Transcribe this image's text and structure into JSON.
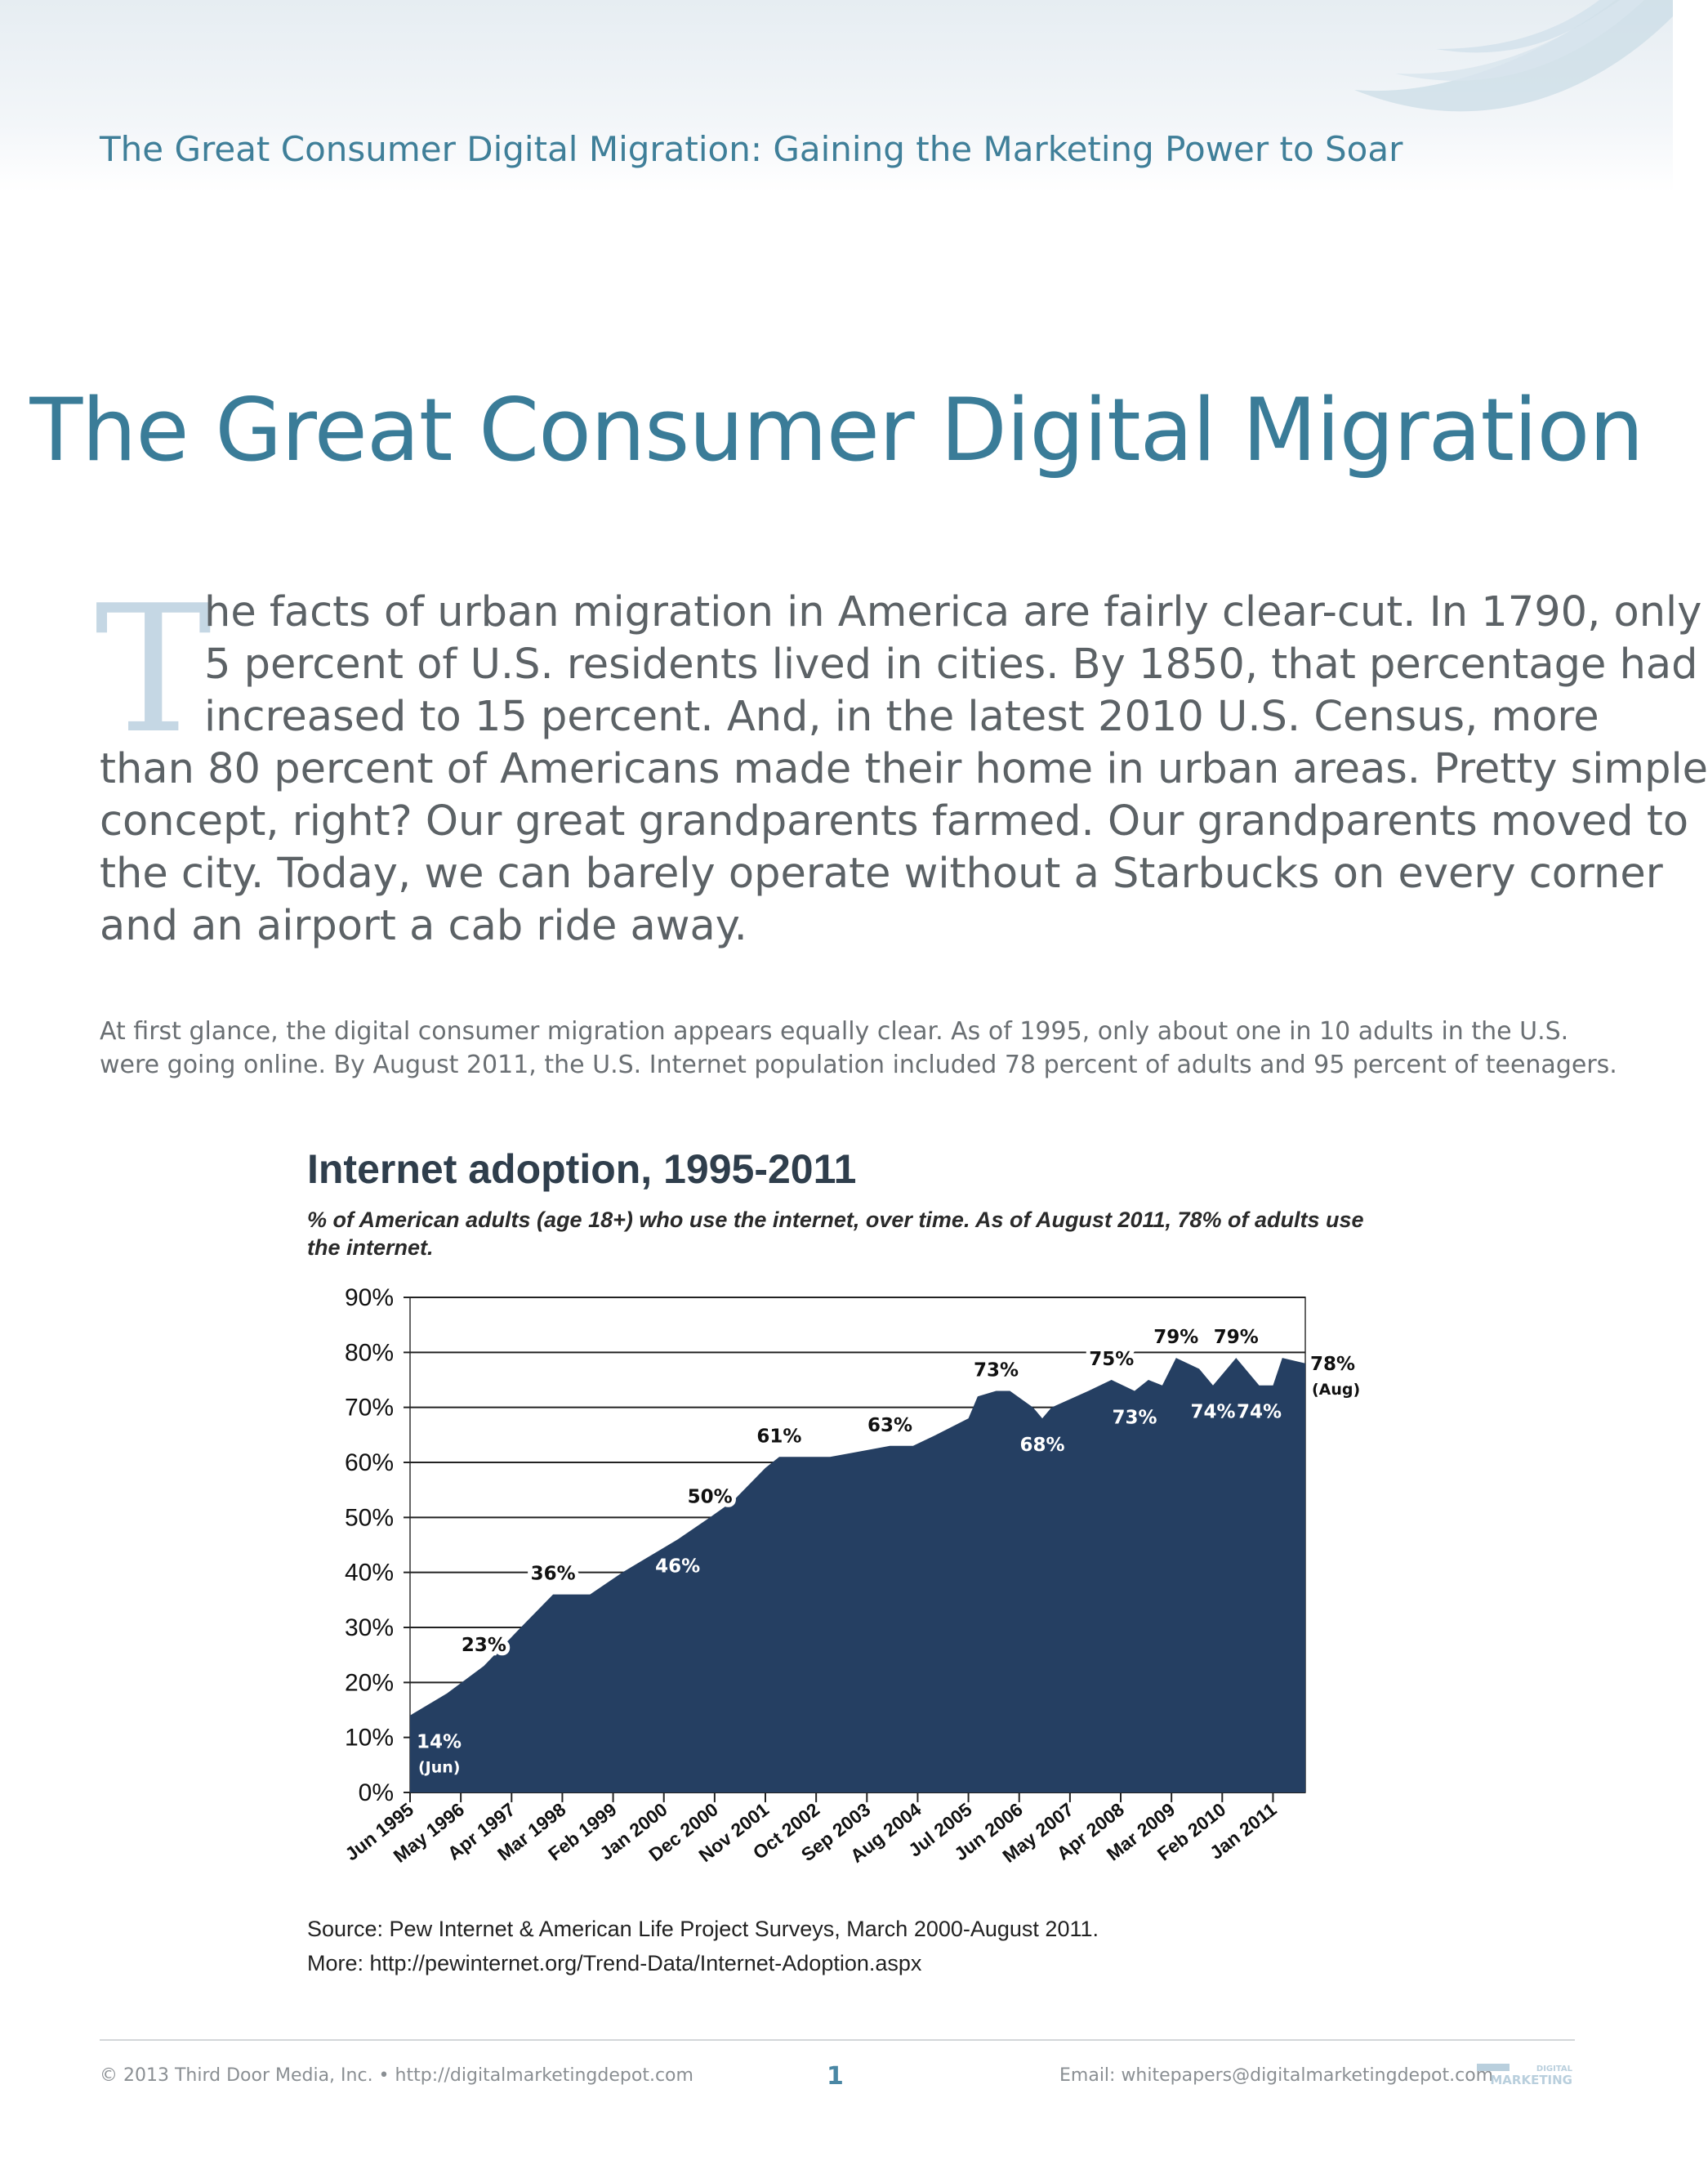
{
  "header": {
    "running_title": "The Great Consumer Digital Migration: Gaining the Marketing Power to Soar",
    "swoosh_icon": "swoosh-decoration-icon",
    "colors": {
      "band": "#e6edf2",
      "swoosh": "#c9dbe6"
    }
  },
  "title": "The Great Consumer Digital Migration",
  "intro": {
    "drop_cap": "T",
    "lines": [
      "he facts of urban migration in America are fairly clear-cut. In 1790, only",
      "5 percent of U.S. residents lived in cities. By 1850, that percentage had",
      "increased to 15 percent. And, in the latest 2010 U.S. Census, more",
      "than 80 percent of Americans made their home in urban areas. Pretty simple",
      "concept, right? Our great grandparents farmed. Our grandparents moved to",
      "the city. Today, we can barely operate without a Starbucks on every corner",
      "and an airport a cab ride away."
    ]
  },
  "body": {
    "lines": [
      "At first glance, the digital consumer migration appears equally clear. As of 1995, only about one in 10 adults in the U.S.",
      "were going online. By August 2011, the U.S. Internet population included 78 percent of adults and 95 percent of teenagers."
    ]
  },
  "chart_data": {
    "type": "area",
    "title": "Internet adoption, 1995-2011",
    "subtitle": "% of American adults (age 18+) who use the internet, over time. As of August 2011, 78% of adults use the internet.",
    "xlabel": "",
    "ylabel": "",
    "ylim": [
      0,
      90
    ],
    "y_ticks": [
      "0%",
      "10%",
      "20%",
      "30%",
      "40%",
      "50%",
      "60%",
      "70%",
      "80%",
      "90%"
    ],
    "x_ticks": [
      "Jun 1995",
      "May 1996",
      "Apr 1997",
      "Mar 1998",
      "Feb 1999",
      "Jan 2000",
      "Dec 2000",
      "Nov 2001",
      "Oct 2002",
      "Sep 2003",
      "Aug 2004",
      "Jul 2005",
      "Jun 2006",
      "May 2007",
      "Apr 2008",
      "Mar 2009",
      "Feb 2010",
      "Jan 2011"
    ],
    "grid": "horizontal",
    "fill_color": "#253f62",
    "points": [
      {
        "x": "Jun 1995",
        "y": 14
      },
      {
        "x": "Feb 1996",
        "y": 18
      },
      {
        "x": "Oct 1996",
        "y": 23
      },
      {
        "x": "Jun 1997",
        "y": 30
      },
      {
        "x": "Jan 1998",
        "y": 36
      },
      {
        "x": "Sep 1998",
        "y": 36
      },
      {
        "x": "Apr 1999",
        "y": 40
      },
      {
        "x": "Dec 1999",
        "y": 44
      },
      {
        "x": "Apr 2000",
        "y": 46
      },
      {
        "x": "Nov 2000",
        "y": 50
      },
      {
        "x": "Apr 2001",
        "y": 53
      },
      {
        "x": "Nov 2001",
        "y": 59
      },
      {
        "x": "Feb 2002",
        "y": 61
      },
      {
        "x": "Jan 2003",
        "y": 61
      },
      {
        "x": "Feb 2004",
        "y": 63
      },
      {
        "x": "Jul 2004",
        "y": 63
      },
      {
        "x": "Dec 2004",
        "y": 65
      },
      {
        "x": "Jul 2005",
        "y": 68
      },
      {
        "x": "Sep 2005",
        "y": 72
      },
      {
        "x": "Jan 2006",
        "y": 73
      },
      {
        "x": "Apr 2006",
        "y": 73
      },
      {
        "x": "Sep 2006",
        "y": 70
      },
      {
        "x": "Nov 2006",
        "y": 68
      },
      {
        "x": "Jan 2007",
        "y": 70
      },
      {
        "x": "Sep 2007",
        "y": 73
      },
      {
        "x": "Feb 2008",
        "y": 75
      },
      {
        "x": "Jul 2008",
        "y": 73
      },
      {
        "x": "Oct 2008",
        "y": 75
      },
      {
        "x": "Jan 2009",
        "y": 74
      },
      {
        "x": "Apr 2009",
        "y": 79
      },
      {
        "x": "Sep 2009",
        "y": 77
      },
      {
        "x": "Dec 2009",
        "y": 74
      },
      {
        "x": "May 2010",
        "y": 79
      },
      {
        "x": "Oct 2010",
        "y": 74
      },
      {
        "x": "Jan 2011",
        "y": 74
      },
      {
        "x": "Mar 2011",
        "y": 79
      },
      {
        "x": "Aug 2011",
        "y": 78
      }
    ],
    "data_labels": [
      {
        "x": "Jun 1995",
        "y": 14,
        "text": "14%",
        "sub": "(Jun)",
        "inside": true
      },
      {
        "x": "Oct 1996",
        "y": 23,
        "text": "23%",
        "inside": false
      },
      {
        "x": "Jan 1998",
        "y": 36,
        "text": "36%",
        "inside": false
      },
      {
        "x": "Apr 2000",
        "y": 46,
        "text": "46%",
        "inside": true
      },
      {
        "x": "Nov 2000",
        "y": 50,
        "text": "50%",
        "inside": false
      },
      {
        "x": "Feb 2002",
        "y": 61,
        "text": "61%",
        "inside": false
      },
      {
        "x": "Feb 2004",
        "y": 63,
        "text": "63%",
        "inside": false
      },
      {
        "x": "Jan 2006",
        "y": 73,
        "text": "73%",
        "inside": false
      },
      {
        "x": "Nov 2006",
        "y": 68,
        "text": "68%",
        "inside": true
      },
      {
        "x": "Feb 2008",
        "y": 75,
        "text": "75%",
        "inside": false
      },
      {
        "x": "Jul 2008",
        "y": 73,
        "text": "73%",
        "inside": true
      },
      {
        "x": "Apr 2009",
        "y": 79,
        "text": "79%",
        "inside": false
      },
      {
        "x": "Dec 2009",
        "y": 74,
        "text": "74%",
        "inside": true
      },
      {
        "x": "May 2010",
        "y": 79,
        "text": "79%",
        "inside": false
      },
      {
        "x": "Oct 2010",
        "y": 74,
        "text": "74%",
        "inside": true
      },
      {
        "x": "Aug 2011",
        "y": 78,
        "text": "78%",
        "sub": "(Aug)",
        "outside_right": true
      }
    ],
    "source": "Source: Pew Internet & American Life Project Surveys, March 2000-August 2011.",
    "more": "More: http://pewinternet.org/Trend-Data/Internet-Adoption.aspx"
  },
  "footer": {
    "copyright": "© 2013 Third Door Media, Inc. • http://digitalmarketingdepot.com",
    "page_number": "1",
    "email": "Email: whitepapers@digitalmarketingdepot.com",
    "logo_icon": "digital-marketing-logo-icon",
    "logo_text_top": "DIGITAL",
    "logo_text_bottom": "MARKETING"
  }
}
